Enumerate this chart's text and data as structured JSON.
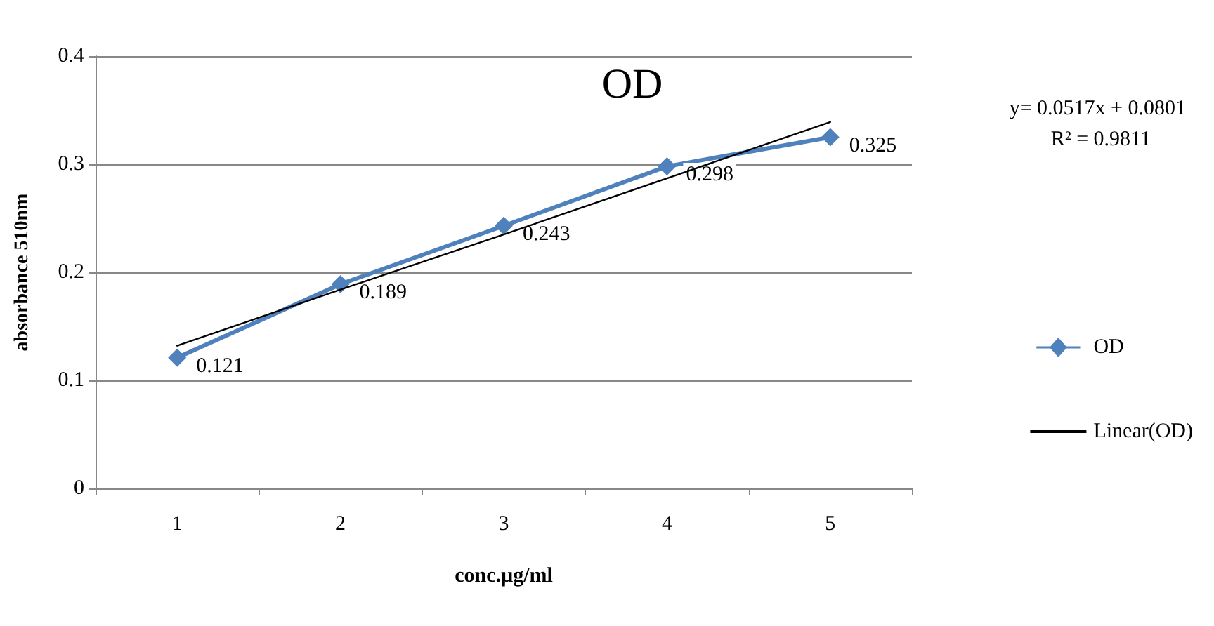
{
  "chart_data": {
    "type": "line",
    "title": "OD",
    "xlabel": "conc.µg/ml",
    "ylabel": "absorbance 510nm",
    "categories": [
      "1",
      "2",
      "3",
      "4",
      "5"
    ],
    "series": [
      {
        "name": "OD",
        "color": "#4f81bd",
        "values": [
          0.121,
          0.189,
          0.243,
          0.298,
          0.325
        ],
        "value_labels": [
          "0.121",
          "0.189",
          "0.243",
          "0.298",
          "0.325"
        ],
        "marker": "diamond"
      },
      {
        "name": "Linear(OD)",
        "type": "line",
        "color": "#000000",
        "values": [
          0.132,
          0.184,
          0.235,
          0.287,
          0.339
        ],
        "marker": "none"
      }
    ],
    "ylim": [
      0,
      0.4
    ],
    "yticks": [
      0,
      0.1,
      0.2,
      0.3,
      0.4
    ],
    "grid": "y",
    "legend": "right",
    "annotations": [
      "y= 0.0517x + 0.0801",
      "R² = 0.9811"
    ]
  }
}
